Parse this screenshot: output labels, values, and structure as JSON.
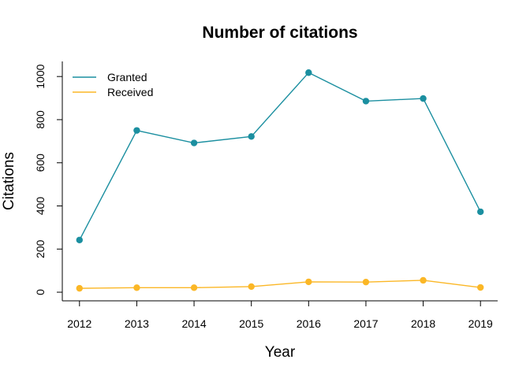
{
  "chart_data": {
    "type": "line",
    "title": "Number of citations",
    "xlabel": "Year",
    "ylabel": "Citations",
    "x": [
      2012,
      2013,
      2014,
      2015,
      2016,
      2017,
      2018,
      2019
    ],
    "x_tick_labels": [
      "2012",
      "2013",
      "2014",
      "2015",
      "2016",
      "2017",
      "2018",
      "2019"
    ],
    "y_ticks": [
      0,
      200,
      400,
      600,
      800,
      1000
    ],
    "y_tick_labels": [
      "0",
      "200",
      "400",
      "600",
      "800",
      "1000"
    ],
    "ylim": [
      -40,
      1070
    ],
    "xlim": [
      2011.7,
      2019.3
    ],
    "grid": false,
    "legend_position": "top-left",
    "series": [
      {
        "name": "Granted",
        "color": "#1b8fa0",
        "values": [
          242,
          750,
          692,
          722,
          1018,
          886,
          898,
          373
        ]
      },
      {
        "name": "Received",
        "color": "#fbb726",
        "values": [
          18,
          21,
          21,
          26,
          48,
          47,
          55,
          22
        ]
      }
    ]
  }
}
